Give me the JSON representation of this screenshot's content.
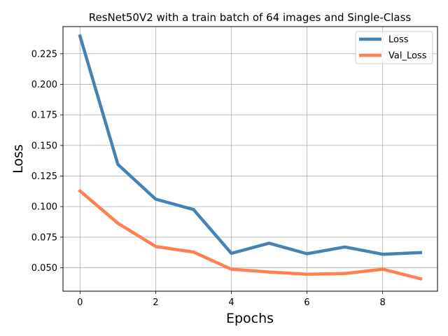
{
  "chart_data": {
    "type": "line",
    "title": "ResNet50V2 with a train batch of 64 images and Single-Class",
    "xlabel": "Epochs",
    "ylabel": "Loss",
    "x": [
      0,
      1,
      2,
      3,
      4,
      5,
      6,
      7,
      8,
      9
    ],
    "xlim": [
      -0.45,
      9.45
    ],
    "ylim": [
      0.0308,
      0.2472
    ],
    "xticks": [
      0,
      2,
      4,
      6,
      8
    ],
    "yticks": [
      0.05,
      0.075,
      0.1,
      0.125,
      0.15,
      0.175,
      0.2,
      0.225
    ],
    "grid": true,
    "legend_position": "top-right",
    "series": [
      {
        "name": "Loss",
        "color": "#4682b4",
        "values": [
          0.2395,
          0.1345,
          0.1061,
          0.0976,
          0.0618,
          0.0701,
          0.0614,
          0.067,
          0.061,
          0.0624
        ]
      },
      {
        "name": "Val_Loss",
        "color": "#ff7f50",
        "values": [
          0.1128,
          0.0864,
          0.0674,
          0.0628,
          0.0488,
          0.0465,
          0.0447,
          0.0452,
          0.0488,
          0.041
        ]
      }
    ]
  }
}
